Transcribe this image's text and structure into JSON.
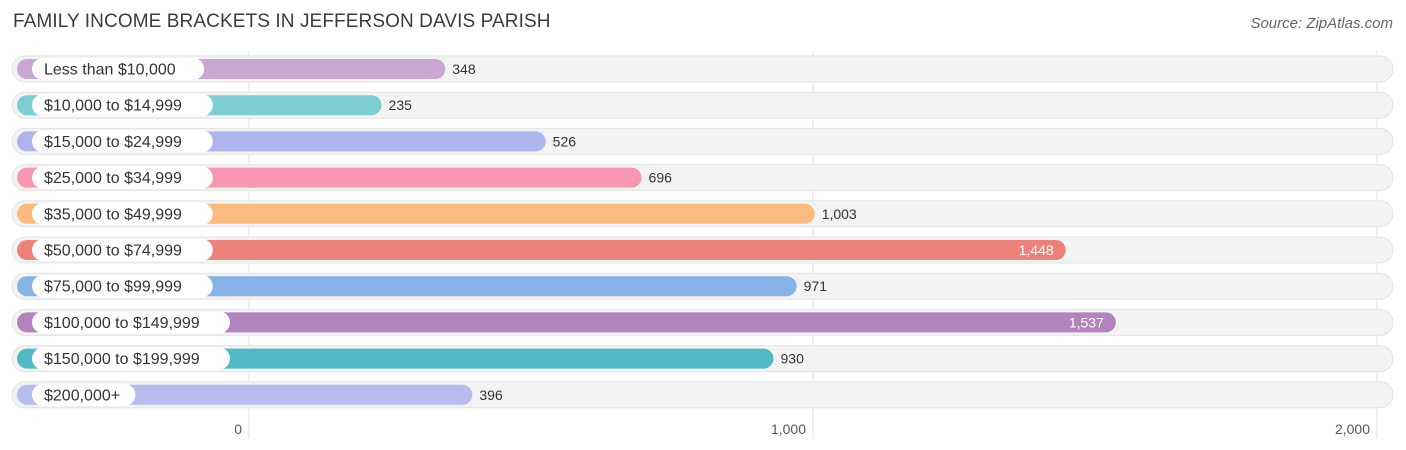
{
  "title": "FAMILY INCOME BRACKETS IN JEFFERSON DAVIS PARISH",
  "source": "Source: ZipAtlas.com",
  "chart_data": {
    "type": "bar",
    "orientation": "horizontal",
    "title": "FAMILY INCOME BRACKETS IN JEFFERSON DAVIS PARISH",
    "categories": [
      "Less than $10,000",
      "$10,000 to $14,999",
      "$15,000 to $24,999",
      "$25,000 to $34,999",
      "$35,000 to $49,999",
      "$50,000 to $74,999",
      "$75,000 to $99,999",
      "$100,000 to $149,999",
      "$150,000 to $199,999",
      "$200,000+"
    ],
    "values": [
      348,
      235,
      526,
      696,
      1003,
      1448,
      971,
      1537,
      930,
      396
    ],
    "value_labels": [
      "348",
      "235",
      "526",
      "696",
      "1,003",
      "1,448",
      "971",
      "1,537",
      "930",
      "396"
    ],
    "colors": [
      "#c9a8d3",
      "#7fcdd4",
      "#aeb4ec",
      "#f797b4",
      "#fbbb7c",
      "#ec8179",
      "#86b2e5",
      "#b283bc",
      "#51b9c5",
      "#b5bcee"
    ],
    "xlim": [
      0,
      2000
    ],
    "ticks": [
      0,
      1000,
      2000
    ],
    "tick_labels": [
      "0",
      "1,000",
      "2,000"
    ],
    "grid": true,
    "xlabel": "",
    "ylabel": ""
  }
}
